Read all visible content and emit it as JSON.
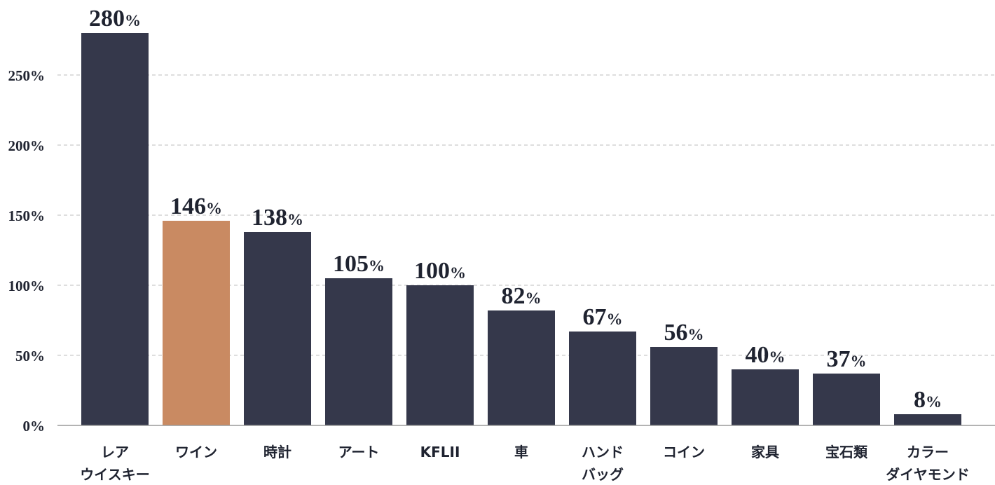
{
  "chart_data": {
    "type": "bar",
    "categories": [
      "レア\nウイスキー",
      "ワイン",
      "時計",
      "アート",
      "KFLII",
      "車",
      "ハンド\nバッグ",
      "コイン",
      "家具",
      "宝石類",
      "カラー\nダイヤモンド"
    ],
    "values": [
      280,
      146,
      138,
      105,
      100,
      82,
      67,
      56,
      40,
      37,
      8
    ],
    "unit": "%",
    "title": "",
    "xlabel": "",
    "ylabel": "",
    "ylim": [
      0,
      280
    ],
    "yticks": [
      0,
      50,
      100,
      150,
      200,
      250
    ],
    "ytick_labels": [
      "0%",
      "50%",
      "100%",
      "150%",
      "200%",
      "250%"
    ],
    "grid": true,
    "legend": "none",
    "colors": {
      "default": "#35384b",
      "highlight": "#c98a62",
      "grid": "#bdbdbd",
      "axis": "#9a9a9a",
      "text": "#1f2330"
    },
    "highlight_index": 1
  }
}
